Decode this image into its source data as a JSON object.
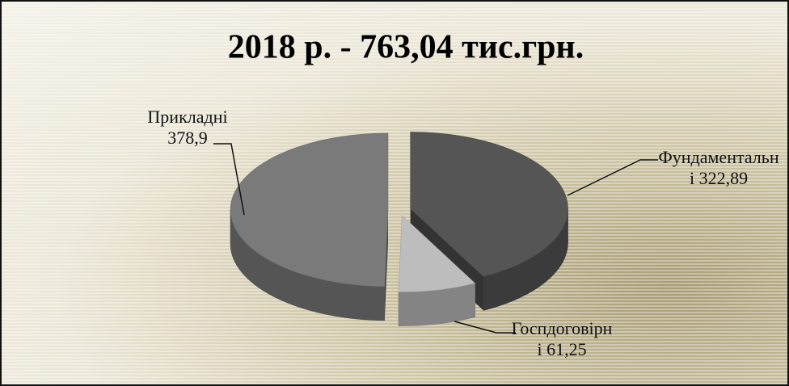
{
  "chart_data": {
    "type": "pie3d",
    "title": "2018 р. - 763,04 тис.грн.",
    "categories": [
      "Фундаментальні",
      "Госпдоговірні",
      "Прикладні"
    ],
    "values": [
      322.89,
      61.25,
      378.9
    ],
    "value_labels": [
      "322,89",
      "61,25",
      "378,9"
    ],
    "colors": [
      "#555555",
      "#bdbdbd",
      "#7a7a7a"
    ]
  }
}
